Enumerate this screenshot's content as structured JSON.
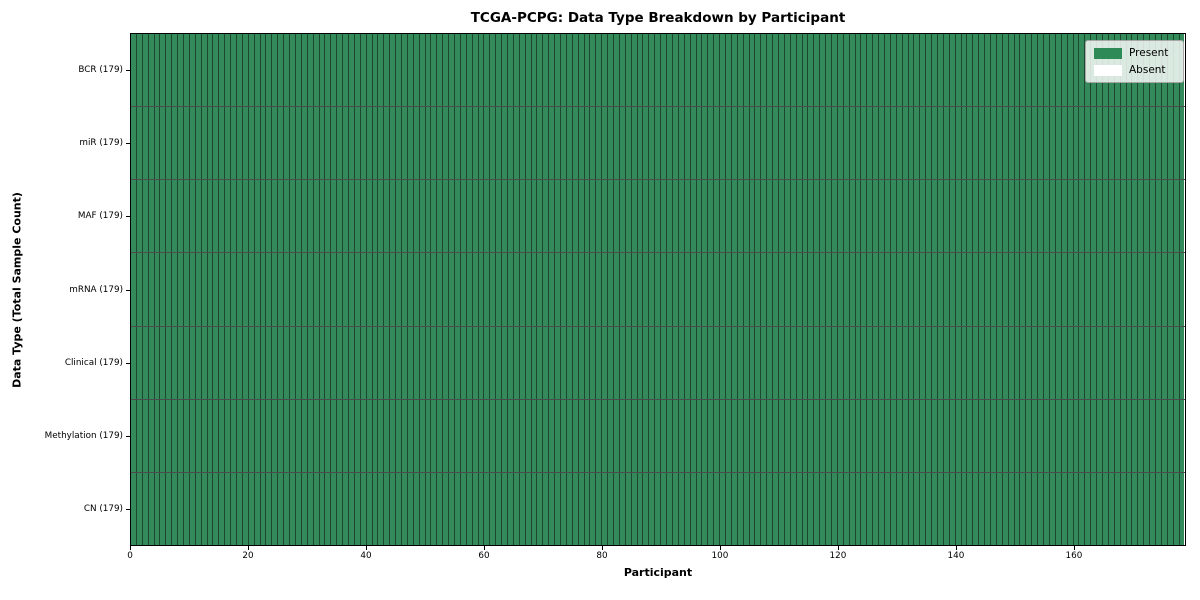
{
  "chart_data": {
    "type": "heatmap",
    "title": "TCGA-PCPG: Data Type Breakdown by Participant",
    "xlabel": "Participant",
    "ylabel": "Data Type (Total Sample Count)",
    "n_participants": 179,
    "x_ticks": [
      0,
      20,
      40,
      60,
      80,
      100,
      120,
      140,
      160
    ],
    "rows": [
      {
        "label": "BCR (179)",
        "data_type": "BCR",
        "total_sample_count": 179,
        "present_count": 179,
        "absent_participants": []
      },
      {
        "label": "miR (179)",
        "data_type": "miR",
        "total_sample_count": 179,
        "present_count": 179,
        "absent_participants": []
      },
      {
        "label": "MAF (179)",
        "data_type": "MAF",
        "total_sample_count": 179,
        "present_count": 179,
        "absent_participants": []
      },
      {
        "label": "mRNA (179)",
        "data_type": "mRNA",
        "total_sample_count": 179,
        "present_count": 179,
        "absent_participants": []
      },
      {
        "label": "Clinical (179)",
        "data_type": "Clinical",
        "total_sample_count": 179,
        "present_count": 179,
        "absent_participants": []
      },
      {
        "label": "Methylation (179)",
        "data_type": "Methylation",
        "total_sample_count": 179,
        "present_count": 179,
        "absent_participants": []
      },
      {
        "label": "CN (179)",
        "data_type": "CN",
        "total_sample_count": 179,
        "present_count": 179,
        "absent_participants": []
      }
    ],
    "legend": {
      "position": "upper-right",
      "entries": [
        {
          "label": "Present",
          "color": "#2e8b57"
        },
        {
          "label": "Absent",
          "color": "#ffffff"
        }
      ]
    },
    "colors": {
      "present": "#358a5b",
      "absent": "#ffffff"
    },
    "layout_hints": {
      "grid": "cell edges drawn as thin dark lines",
      "all_cells_present": true
    }
  }
}
